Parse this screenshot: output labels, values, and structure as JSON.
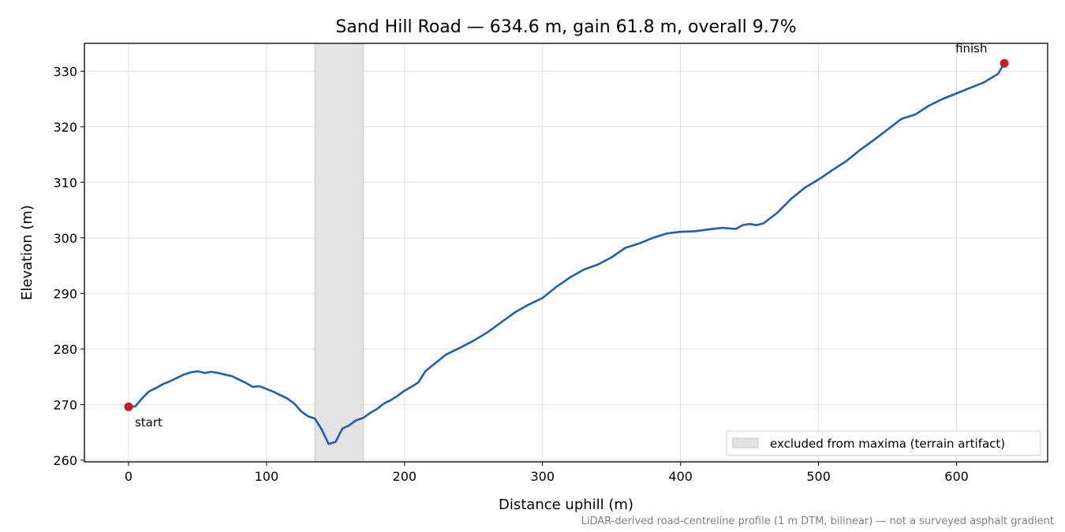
{
  "chart_data": {
    "type": "line",
    "title": "Sand Hill Road — 634.6 m, gain 61.8 m, overall 9.7%",
    "xlabel": "Distance uphill (m)",
    "ylabel": "Elevation (m)",
    "xlim": [
      -32,
      666
    ],
    "ylim": [
      259.7,
      335.0
    ],
    "x_ticks": [
      0,
      100,
      200,
      300,
      400,
      500,
      600
    ],
    "y_ticks": [
      260,
      270,
      280,
      290,
      300,
      310,
      320,
      330
    ],
    "grid": true,
    "line_color": "#1f5fb0",
    "marker_color": "#c0202a",
    "band_color": "#e3e3e3",
    "series": [
      {
        "x": [
          0,
          5,
          10,
          15,
          20,
          25,
          30,
          35,
          40,
          45,
          50,
          55,
          60,
          65,
          70,
          75,
          80,
          85,
          90,
          95,
          100,
          105,
          110,
          115,
          120,
          125,
          130,
          135,
          140,
          145,
          150,
          155,
          160,
          165,
          170,
          175,
          180,
          185,
          190,
          195,
          200,
          205,
          210,
          215,
          220,
          225,
          230,
          240,
          250,
          260,
          270,
          280,
          290,
          300,
          310,
          320,
          330,
          340,
          350,
          360,
          370,
          380,
          390,
          400,
          410,
          420,
          430,
          440,
          445,
          450,
          455,
          460,
          470,
          480,
          490,
          500,
          510,
          520,
          530,
          540,
          550,
          560,
          570,
          580,
          590,
          600,
          610,
          620,
          630,
          634.6
        ],
        "y": [
          269.6,
          269.7,
          271.2,
          272.4,
          273.0,
          273.7,
          274.2,
          274.8,
          275.4,
          275.8,
          276.0,
          275.7,
          275.9,
          275.7,
          275.4,
          275.1,
          274.5,
          273.9,
          273.2,
          273.3,
          272.8,
          272.3,
          271.7,
          271.1,
          270.2,
          268.8,
          267.9,
          267.5,
          265.5,
          262.9,
          263.3,
          265.7,
          266.3,
          267.2,
          267.6,
          268.5,
          269.2,
          270.2,
          270.8,
          271.6,
          272.5,
          273.2,
          274.0,
          276.0,
          277.0,
          278.0,
          279.0,
          280.2,
          281.5,
          283.0,
          284.8,
          286.6,
          288.0,
          289.2,
          291.2,
          292.9,
          294.3,
          295.2,
          296.5,
          298.2,
          299.0,
          300.0,
          300.8,
          301.1,
          301.2,
          301.5,
          301.8,
          301.6,
          302.3,
          302.5,
          302.3,
          302.6,
          304.5,
          307.0,
          309.0,
          310.5,
          312.2,
          313.8,
          315.8,
          317.6,
          319.5,
          321.4,
          322.2,
          323.8,
          325.0,
          326.0,
          327.0,
          328.0,
          329.5,
          331.4
        ]
      }
    ],
    "annotations": [
      {
        "text": "start",
        "x": 0,
        "y": 269.6
      },
      {
        "text": "finish",
        "x": 634.6,
        "y": 331.4
      }
    ],
    "excluded_band": {
      "x_start": 135,
      "x_end": 170,
      "label": "excluded from maxima (terrain artifact)"
    },
    "legend_position": "lower-right",
    "footnote": "LiDAR-derived road-centreline profile (1 m DTM, bilinear) — not a surveyed asphalt gradient"
  }
}
